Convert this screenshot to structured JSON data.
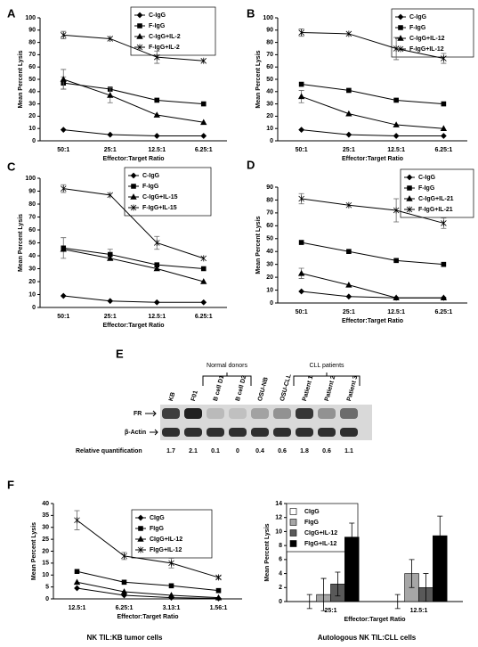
{
  "chart_data": [
    {
      "type": "line",
      "panel": "A",
      "y_label": "Mean Percent Lysis",
      "x_label": "Effector:Target Ratio",
      "categories": [
        "50:1",
        "25:1",
        "12.5:1",
        "6.25:1"
      ],
      "ylim": [
        0,
        100
      ],
      "yticks": [
        0,
        10,
        20,
        30,
        40,
        50,
        60,
        70,
        80,
        90,
        100
      ],
      "legend": "upper right",
      "series": [
        {
          "name": "C-IgG",
          "marker": "diamond",
          "color": "#000000",
          "values": [
            9,
            5,
            4,
            4
          ],
          "errors": [
            null,
            null,
            null,
            null
          ]
        },
        {
          "name": "F-IgG",
          "marker": "square",
          "color": "#000000",
          "values": [
            47,
            42,
            33,
            30
          ],
          "errors": [
            5,
            null,
            null,
            null
          ]
        },
        {
          "name": "C-IgG+IL-2",
          "marker": "triangle",
          "color": "#000000",
          "values": [
            50,
            37,
            21,
            15
          ],
          "errors": [
            8,
            6,
            null,
            null
          ]
        },
        {
          "name": "F-IgG+IL-2",
          "marker": "cross",
          "color": "#000000",
          "values": [
            86,
            83,
            68,
            65
          ],
          "errors": [
            3,
            null,
            5,
            null
          ]
        }
      ]
    },
    {
      "type": "line",
      "panel": "B",
      "y_label": "Mean Percent Lysis",
      "x_label": "Effector:Target Ratio",
      "categories": [
        "50:1",
        "25:1",
        "12.5:1",
        "6.25:1"
      ],
      "ylim": [
        0,
        100
      ],
      "yticks": [
        0,
        10,
        20,
        30,
        40,
        50,
        60,
        70,
        80,
        90,
        100
      ],
      "legend": "upper right",
      "series": [
        {
          "name": "C-IgG",
          "marker": "diamond",
          "color": "#000000",
          "values": [
            9,
            5,
            4,
            4
          ],
          "errors": [
            null,
            null,
            null,
            null
          ]
        },
        {
          "name": "F-IgG",
          "marker": "square",
          "color": "#000000",
          "values": [
            46,
            41,
            33,
            30
          ],
          "errors": [
            null,
            null,
            null,
            null
          ]
        },
        {
          "name": "C-IgG+IL-12",
          "marker": "triangle",
          "color": "#000000",
          "values": [
            36,
            22,
            13,
            10
          ],
          "errors": [
            5,
            null,
            null,
            null
          ]
        },
        {
          "name": "F-IgG+IL-12",
          "marker": "cross",
          "color": "#000000",
          "values": [
            88,
            87,
            75,
            67
          ],
          "errors": [
            3,
            null,
            9,
            4
          ]
        }
      ]
    },
    {
      "type": "line",
      "panel": "C",
      "y_label": "Mean Percent Lysis",
      "x_label": "Effector:Target Ratio",
      "categories": [
        "50:1",
        "25:1",
        "12.5:1",
        "6.25:1"
      ],
      "ylim": [
        0,
        100
      ],
      "yticks": [
        0,
        10,
        20,
        30,
        40,
        50,
        60,
        70,
        80,
        90,
        100
      ],
      "legend": "upper right",
      "series": [
        {
          "name": "C-IgG",
          "marker": "diamond",
          "color": "#000000",
          "values": [
            9,
            5,
            4,
            4
          ],
          "errors": [
            null,
            null,
            null,
            null
          ]
        },
        {
          "name": "F-IgG",
          "marker": "square",
          "color": "#000000",
          "values": [
            46,
            41,
            33,
            30
          ],
          "errors": [
            8,
            4,
            null,
            null
          ]
        },
        {
          "name": "C-IgG+IL-15",
          "marker": "triangle",
          "color": "#000000",
          "values": [
            45,
            38,
            30,
            20
          ],
          "errors": [
            null,
            null,
            null,
            null
          ]
        },
        {
          "name": "F-IgG+IL-15",
          "marker": "cross",
          "color": "#000000",
          "values": [
            92,
            87,
            50,
            38
          ],
          "errors": [
            3,
            null,
            5,
            null
          ]
        }
      ]
    },
    {
      "type": "line",
      "panel": "D",
      "y_label": "Mean Percent Lysis",
      "x_label": "Effector:Target Ratio",
      "categories": [
        "50:1",
        "25:1",
        "12.5:1",
        "6.25:1"
      ],
      "ylim": [
        0,
        90
      ],
      "yticks": [
        0,
        10,
        20,
        30,
        40,
        50,
        60,
        70,
        80,
        90
      ],
      "legend": "upper right",
      "series": [
        {
          "name": "C-IgG",
          "marker": "diamond",
          "color": "#000000",
          "values": [
            9,
            5,
            4,
            4
          ],
          "errors": [
            null,
            null,
            null,
            null
          ]
        },
        {
          "name": "F-IgG",
          "marker": "square",
          "color": "#000000",
          "values": [
            47,
            40,
            33,
            30
          ],
          "errors": [
            null,
            null,
            null,
            null
          ]
        },
        {
          "name": "C-IgG+IL-21",
          "marker": "triangle",
          "color": "#000000",
          "values": [
            23,
            14,
            4,
            4
          ],
          "errors": [
            4,
            null,
            null,
            null
          ]
        },
        {
          "name": "F-IgG+IL-21",
          "marker": "cross",
          "color": "#000000",
          "values": [
            81,
            76,
            72,
            62
          ],
          "errors": [
            4,
            null,
            9,
            4
          ]
        }
      ]
    },
    {
      "type": "line",
      "panel": "F",
      "y_label": "Mean Percent Lysis",
      "x_label": "Effector:Target Ratio",
      "caption": "NK TIL:KB tumor cells",
      "categories": [
        "12.5:1",
        "6.25:1",
        "3.13:1",
        "1.56:1"
      ],
      "ylim": [
        0,
        40
      ],
      "yticks": [
        0,
        5,
        10,
        15,
        20,
        25,
        30,
        35,
        40
      ],
      "legend": "upper right",
      "series": [
        {
          "name": "CIgG",
          "marker": "diamond",
          "color": "#000000",
          "values": [
            4.5,
            1.5,
            0.5,
            0.2
          ],
          "errors": [
            null,
            null,
            null,
            null
          ]
        },
        {
          "name": "FIgG",
          "marker": "square",
          "color": "#000000",
          "values": [
            11.5,
            7,
            5.5,
            3.5
          ],
          "errors": [
            null,
            null,
            null,
            null
          ]
        },
        {
          "name": "CIgG+IL-12",
          "marker": "triangle",
          "color": "#000000",
          "values": [
            7,
            3,
            1.5,
            0.5
          ],
          "errors": [
            null,
            null,
            null,
            null
          ]
        },
        {
          "name": "FIgG+IL-12",
          "marker": "cross",
          "color": "#000000",
          "values": [
            33,
            18,
            15,
            9
          ],
          "errors": [
            4,
            1.5,
            2,
            0.5
          ]
        }
      ]
    },
    {
      "type": "bar",
      "y_label": "Mean Percent Lysis",
      "x_label": "Effector:Target Ratio",
      "caption": "Autologous NK TIL:CLL cells",
      "categories": [
        "25:1",
        "12.5:1"
      ],
      "ylim": [
        0,
        14
      ],
      "yticks": [
        0,
        2,
        4,
        6,
        8,
        10,
        12,
        14
      ],
      "legend": "upper left",
      "series": [
        {
          "name": "CIgG",
          "color": "#ffffff",
          "values": [
            0,
            0
          ],
          "errors": [
            1,
            1
          ]
        },
        {
          "name": "FIgG",
          "color": "#a6a6a6",
          "values": [
            1,
            4
          ],
          "errors": [
            2.3,
            2
          ]
        },
        {
          "name": "CIgG+IL-12",
          "color": "#595959",
          "values": [
            2.5,
            2
          ],
          "errors": [
            1.7,
            2
          ]
        },
        {
          "name": "FIgG+IL-12",
          "color": "#000000",
          "values": [
            9.2,
            9.4
          ],
          "errors": [
            2,
            2.8
          ]
        }
      ]
    }
  ],
  "blot": {
    "panel": "E",
    "lanes": [
      "KB",
      "F01",
      "B cell D1",
      "B cell D2",
      "OSU-NB",
      "OSU-CLL",
      "Patient 1",
      "Patient 2",
      "Patient 3"
    ],
    "groups": [
      "Normal donors",
      "CLL patients"
    ],
    "rows": [
      "FR",
      "β-Actin"
    ],
    "quant_label": "Relative quantification",
    "quant": [
      1.7,
      2.1,
      0.1,
      0,
      0.4,
      0.6,
      1.8,
      0.6,
      1.1
    ]
  }
}
